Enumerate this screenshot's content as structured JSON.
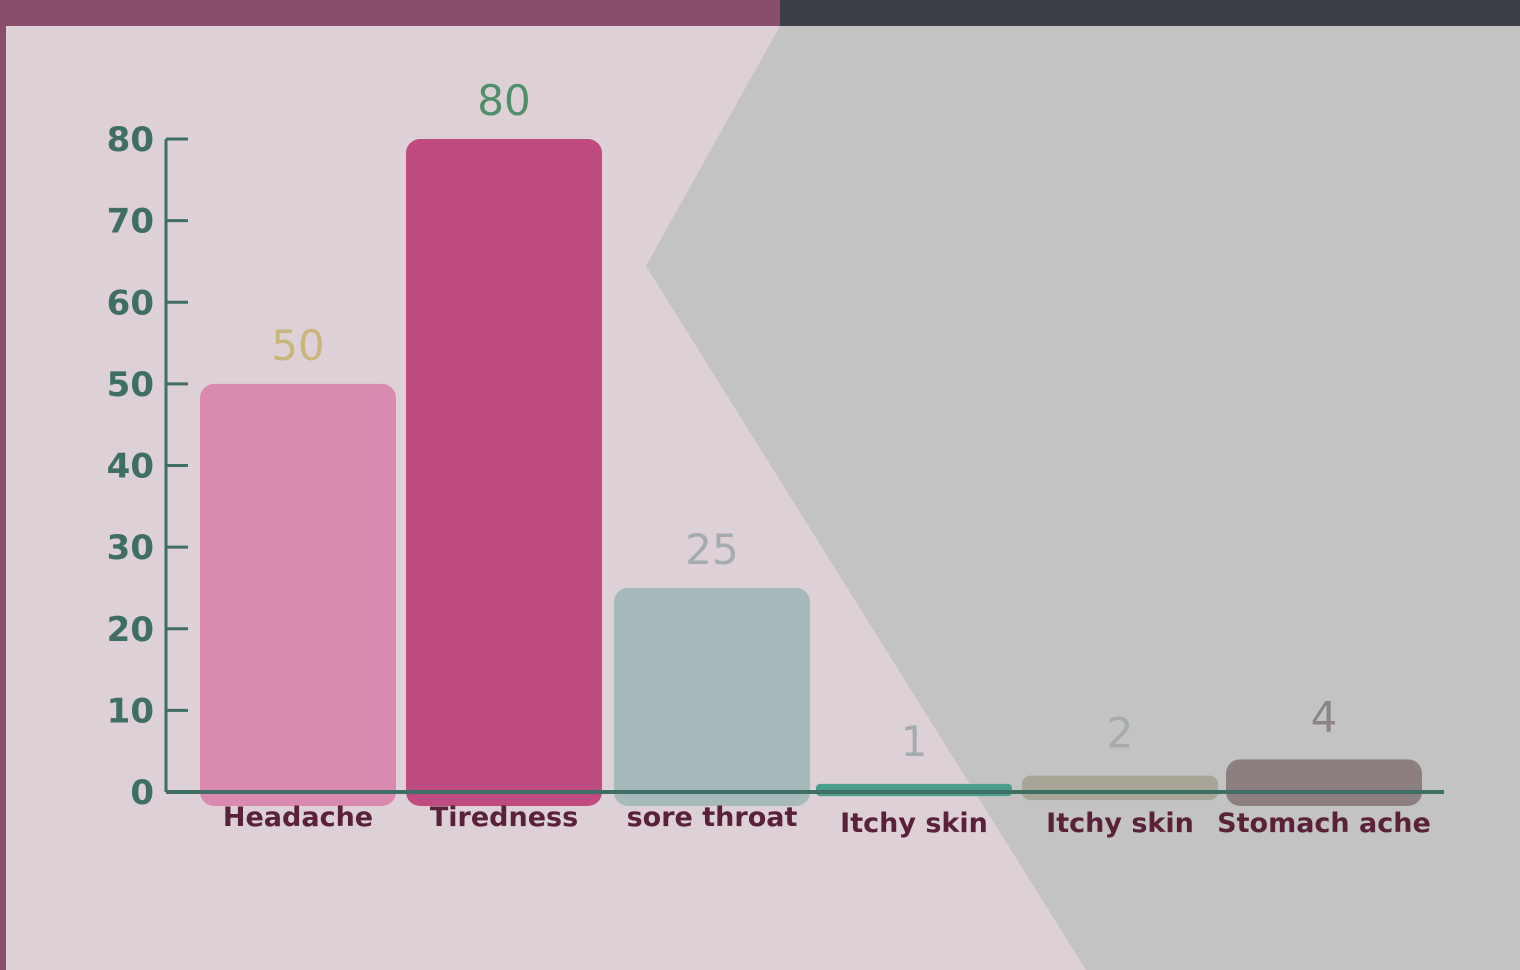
{
  "chart_data": {
    "type": "bar",
    "title": "",
    "xlabel": "",
    "ylabel": "",
    "categories": [
      "Headache",
      "Tiredness",
      "sore throat",
      "Itchy skin",
      "Itchy skin",
      "Stomach ache"
    ],
    "values": [
      50,
      80,
      25,
      1,
      2,
      4
    ],
    "value_labels": [
      "50",
      "80",
      "25",
      "1",
      "2",
      "4"
    ],
    "ylim": [
      0,
      80
    ],
    "yticks": [
      "0",
      "10",
      "20",
      "30",
      "40",
      "50",
      "60",
      "70",
      "80"
    ],
    "grid": false,
    "legend": "none",
    "bar_colors": [
      "#d98aae",
      "#c04b80",
      "#a6b9bb",
      "#4a9f8c",
      "#a8a596",
      "#8d7f80"
    ],
    "label_colors": [
      "#c8b67a",
      "#4f8f6a",
      "#a5acae",
      "#a5acae",
      "#a5acae",
      "#8d8585"
    ],
    "axis_color": "#3f6f62"
  }
}
